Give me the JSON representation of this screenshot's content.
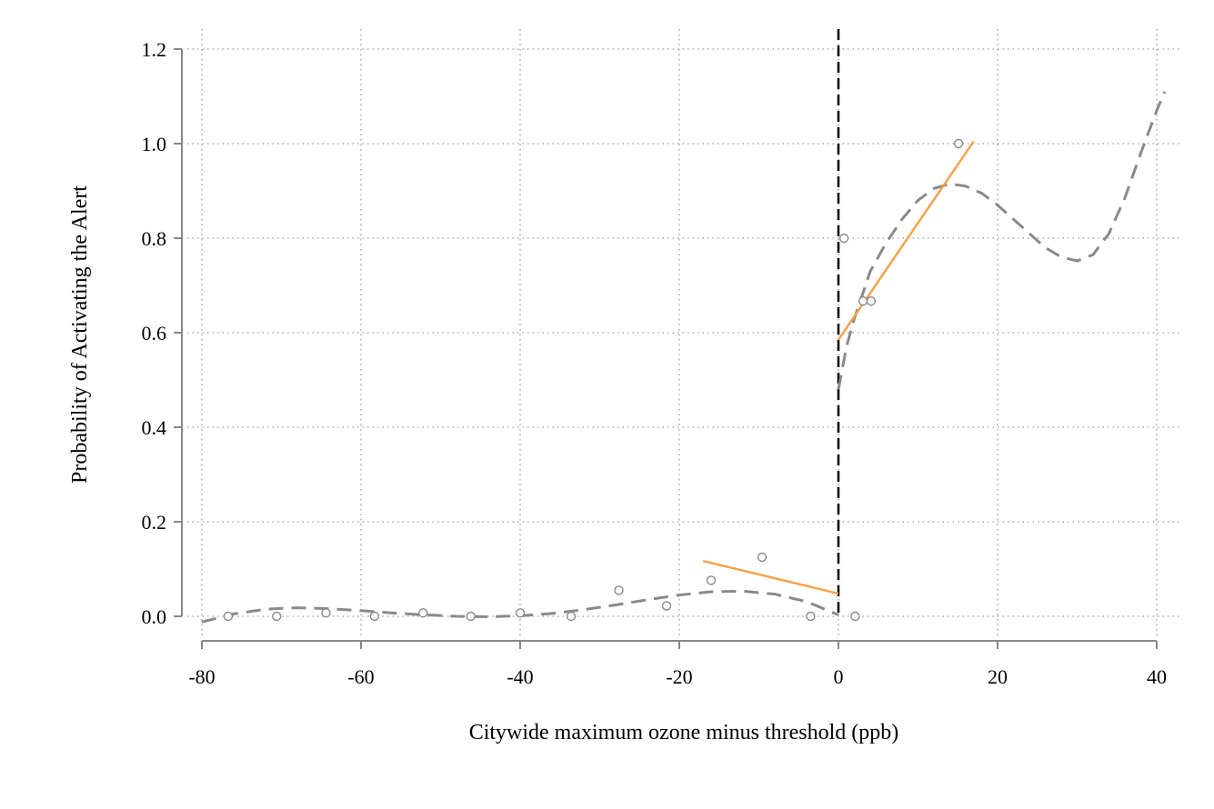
{
  "chart_data": {
    "type": "scatter",
    "xlabel": "Citywide maximum ozone minus threshold (ppb)",
    "ylabel": "Probability of Activating the Alert",
    "xlim": [
      -80,
      40
    ],
    "ylim": [
      0,
      1.2
    ],
    "x_ticks": [
      -80,
      -60,
      -40,
      -20,
      0,
      20,
      40
    ],
    "y_ticks": [
      0.0,
      0.2,
      0.4,
      0.6,
      0.8,
      1.0,
      1.2
    ],
    "x_tick_labels": [
      "-80",
      "-60",
      "-40",
      "-20",
      "0",
      "20",
      "40"
    ],
    "y_tick_labels": [
      "0.0",
      "0.2",
      "0.4",
      "0.6",
      "0.8",
      "1.0",
      "1.2"
    ],
    "grid": true,
    "grid_style": "dotted",
    "threshold_line": {
      "x": 0,
      "style": "dashed",
      "color": "#000000"
    },
    "binned_means": {
      "marker": "hollow-circle",
      "color": "#8a8a8a",
      "points": [
        {
          "x": -76.7,
          "y": 0.0
        },
        {
          "x": -70.6,
          "y": 0.0
        },
        {
          "x": -64.4,
          "y": 0.007
        },
        {
          "x": -58.3,
          "y": 0.0
        },
        {
          "x": -52.2,
          "y": 0.007
        },
        {
          "x": -46.2,
          "y": 0.0
        },
        {
          "x": -40.0,
          "y": 0.007
        },
        {
          "x": -33.6,
          "y": 0.0
        },
        {
          "x": -27.6,
          "y": 0.055
        },
        {
          "x": -21.6,
          "y": 0.022
        },
        {
          "x": -16.0,
          "y": 0.076
        },
        {
          "x": -9.6,
          "y": 0.125
        },
        {
          "x": -3.5,
          "y": 0.0
        },
        {
          "x": 0.7,
          "y": 0.8
        },
        {
          "x": 2.1,
          "y": 0.0
        },
        {
          "x": 3.1,
          "y": 0.667
        },
        {
          "x": 4.1,
          "y": 0.667
        },
        {
          "x": 15.1,
          "y": 1.0
        }
      ]
    },
    "local_linear_fit": {
      "color": "#f5a24b",
      "segments": [
        {
          "x": [
            -17,
            0
          ],
          "y": [
            0.117,
            0.048
          ]
        },
        {
          "x": [
            0,
            17
          ],
          "y": [
            0.585,
            1.005
          ]
        }
      ]
    },
    "polynomial_fit": {
      "color": "#8a8a8a",
      "style": "dashed",
      "left": {
        "x": [
          -80,
          -76,
          -72,
          -68,
          -64,
          -60,
          -56,
          -52,
          -48,
          -44,
          -40,
          -36,
          -32,
          -28,
          -24,
          -20,
          -16,
          -12,
          -8,
          -4,
          0
        ],
        "y": [
          -0.012,
          0.005,
          0.015,
          0.018,
          0.016,
          0.012,
          0.007,
          0.003,
          0.0,
          -0.001,
          0.001,
          0.006,
          0.014,
          0.024,
          0.035,
          0.045,
          0.052,
          0.053,
          0.047,
          0.031,
          0.003
        ]
      },
      "right": {
        "x": [
          0,
          1,
          2,
          3,
          4,
          6,
          8,
          10,
          12,
          14,
          16,
          18,
          20,
          22,
          24,
          26,
          28,
          30,
          32,
          34,
          36,
          38,
          40,
          41
        ],
        "y": [
          0.48,
          0.57,
          0.63,
          0.68,
          0.73,
          0.79,
          0.84,
          0.88,
          0.905,
          0.915,
          0.91,
          0.895,
          0.87,
          0.84,
          0.81,
          0.78,
          0.76,
          0.752,
          0.765,
          0.81,
          0.885,
          0.98,
          1.07,
          1.11
        ]
      }
    }
  }
}
